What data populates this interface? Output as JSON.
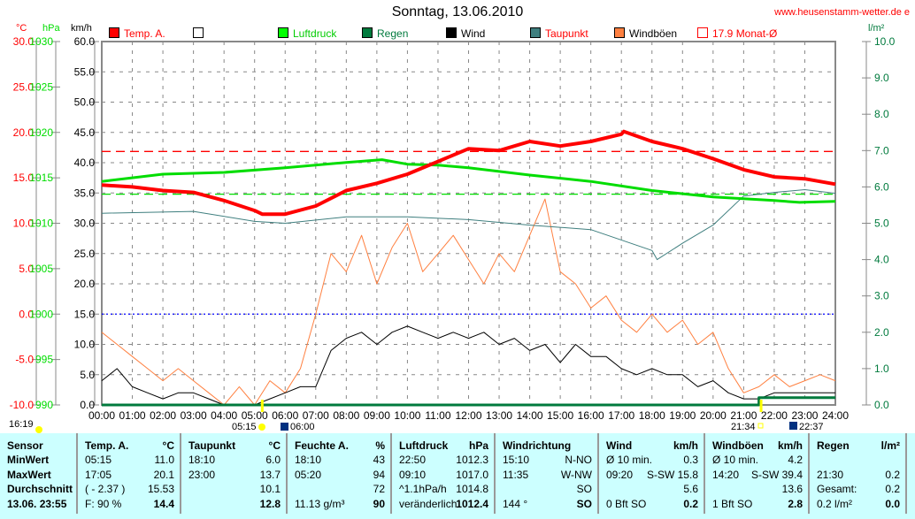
{
  "title": "Sonntag, 13.06.2010",
  "site": "www.heusenstamm-wetter.de e",
  "legend": [
    {
      "label": "Temp. A.",
      "color": "#ff0000",
      "text_color": "#ff0000"
    },
    {
      "label": "",
      "color": "#ffffff",
      "text_color": "#000000"
    },
    {
      "label": "Luftdruck",
      "color": "#00ff00",
      "text_color": "#00cc00"
    },
    {
      "label": "Regen",
      "color": "#007a3d",
      "text_color": "#007a3d"
    },
    {
      "label": "Wind",
      "color": "#000000",
      "text_color": "#000000"
    },
    {
      "label": "Taupunkt",
      "color": "#3f7f7f",
      "text_color": "#ff0000"
    },
    {
      "label": "Windböen",
      "color": "#ff8040",
      "text_color": "#000000"
    },
    {
      "label": "17.9 Monat-Ø",
      "color": "#ff0000",
      "text_color": "#ff0000"
    }
  ],
  "chart_data": {
    "type": "line",
    "title": "Sonntag, 13.06.2010",
    "axes": {
      "temp": {
        "unit": "°C",
        "range": [
          -10,
          30
        ],
        "ticks": [
          "30.0",
          "25.0",
          "20.0",
          "15.0",
          "10.0",
          "5.0",
          "0.0",
          "-5.0",
          "-10.0"
        ]
      },
      "pressure": {
        "unit": "hPa",
        "range": [
          990,
          1030
        ],
        "ticks": [
          "1030",
          "1025",
          "1020",
          "1015",
          "1010",
          "1005",
          "1000",
          "995",
          "990"
        ]
      },
      "wind": {
        "unit": "km/h",
        "range": [
          0,
          60
        ],
        "ticks": [
          "60.0",
          "55.0",
          "50.0",
          "45.0",
          "40.0",
          "35.0",
          "30.0",
          "25.0",
          "20.0",
          "15.0",
          "10.0",
          "5.0",
          "0.0"
        ]
      },
      "rain": {
        "unit": "l/m²",
        "range": [
          0,
          10
        ],
        "ticks": [
          "10.0",
          "9.0",
          "8.0",
          "7.0",
          "6.0",
          "5.0",
          "4.0",
          "3.0",
          "2.0",
          "1.0",
          "0.0"
        ]
      }
    },
    "x_ticks": [
      "00:00",
      "01:00",
      "02:00",
      "03:00",
      "04:00",
      "05:00",
      "06:00",
      "07:00",
      "08:00",
      "09:00",
      "10:00",
      "11:00",
      "12:00",
      "13:00",
      "14:00",
      "15:00",
      "16:00",
      "17:00",
      "18:00",
      "19:00",
      "20:00",
      "21:00",
      "22:00",
      "23:00",
      "24:00"
    ],
    "grid": true,
    "series": [
      {
        "name": "Temp. A.",
        "axis": "temp",
        "color": "#ff0000",
        "hours": [
          0,
          1,
          2,
          3,
          4,
          5,
          5.25,
          6,
          7,
          8,
          9,
          10,
          11,
          12,
          13,
          14,
          15,
          16,
          17,
          17.08,
          18,
          19,
          20,
          21,
          22,
          23,
          24
        ],
        "values": [
          14.2,
          14.0,
          13.6,
          13.4,
          12.5,
          11.4,
          11.0,
          11.0,
          11.9,
          13.6,
          14.4,
          15.4,
          16.8,
          18.2,
          18.0,
          19.0,
          18.5,
          19.0,
          19.8,
          20.1,
          19.0,
          18.2,
          17.1,
          15.9,
          15.1,
          14.9,
          14.3
        ]
      },
      {
        "name": "Luftdruck",
        "axis": "pressure",
        "color": "#00dd00",
        "hours": [
          0,
          2,
          4,
          6,
          8,
          9.17,
          10,
          11,
          12,
          14,
          16,
          18,
          20,
          22,
          22.83,
          24
        ],
        "values": [
          1014.6,
          1015.4,
          1015.6,
          1016.1,
          1016.7,
          1017.0,
          1016.5,
          1016.4,
          1016.1,
          1015.3,
          1014.6,
          1013.6,
          1012.9,
          1012.5,
          1012.3,
          1012.4
        ]
      },
      {
        "name": "Taupunkt",
        "axis": "temp",
        "color": "#3f7f7f",
        "hours": [
          0,
          3,
          5,
          6,
          8,
          10,
          12,
          14,
          16,
          18,
          18.17,
          19,
          20,
          21,
          22,
          23,
          24
        ],
        "values": [
          11.1,
          11.3,
          10.2,
          10.0,
          10.7,
          10.7,
          10.4,
          9.8,
          9.3,
          7.0,
          6.0,
          7.8,
          9.8,
          13.0,
          13.4,
          13.7,
          13.3
        ]
      },
      {
        "name": "Windböen",
        "axis": "wind",
        "color": "#ff8040",
        "step": 0.5,
        "values": [
          12,
          10,
          8,
          6,
          4,
          6,
          4,
          2,
          0,
          3,
          0,
          4,
          2,
          6,
          15,
          25,
          22,
          28,
          20,
          26,
          30,
          22,
          25,
          28,
          24,
          20,
          25,
          22,
          28,
          34,
          22,
          20,
          16,
          18,
          14,
          12,
          15,
          12,
          14,
          10,
          12,
          6,
          2,
          3,
          5,
          3,
          4,
          5,
          4
        ]
      },
      {
        "name": "Wind",
        "axis": "wind",
        "color": "#000000",
        "step": 0.5,
        "values": [
          4,
          6,
          3,
          2,
          1,
          2,
          2,
          1,
          0,
          0,
          0,
          1,
          2,
          3,
          3,
          9,
          11,
          12,
          10,
          12,
          13,
          12,
          11,
          12,
          11,
          12,
          10,
          11,
          9,
          10,
          7,
          10,
          8,
          8,
          6,
          5,
          6,
          5,
          5,
          3,
          4,
          2,
          1,
          1,
          2,
          2,
          2,
          2,
          2
        ]
      },
      {
        "name": "Regen",
        "axis": "rain",
        "color": "#007a3d",
        "hours": [
          0,
          21.5,
          21.5,
          24
        ],
        "values": [
          0,
          0,
          0.2,
          0.2
        ]
      }
    ],
    "reference_lines": [
      {
        "name": "Monat-Ø temp",
        "axis": "temp",
        "value": 17.9,
        "color": "#ff0000",
        "style": "dashed"
      },
      {
        "name": "pressure mean",
        "axis": "pressure",
        "value": 1013.2,
        "color": "#00dd00",
        "style": "dashed"
      },
      {
        "name": "zero line",
        "axis": "temp",
        "value": 0,
        "color": "#0000ff",
        "style": "dotted"
      }
    ],
    "markers": {
      "moonset": "16:19",
      "sunrise": "05:15",
      "sunrise_civil": "06:00",
      "sunset": "21:34",
      "sunset_civil": "22:37"
    }
  },
  "table": {
    "columns": [
      {
        "h": [
          "Sensor",
          ""
        ],
        "rows": [
          [
            "MinWert",
            ""
          ],
          [
            "MaxWert",
            ""
          ],
          [
            "Durchschnitt",
            ""
          ],
          [
            "13.06. 23:55",
            ""
          ]
        ]
      },
      {
        "h": [
          "Temp. A.",
          "°C"
        ],
        "rows": [
          [
            "05:15",
            "11.0"
          ],
          [
            "17:05",
            "20.1"
          ],
          [
            "( - 2.37 )",
            "15.53"
          ],
          [
            "F: 90 %",
            "14.4"
          ]
        ]
      },
      {
        "h": [
          "Taupunkt",
          "°C"
        ],
        "rows": [
          [
            "18:10",
            "6.0"
          ],
          [
            "23:00",
            "13.7"
          ],
          [
            "",
            "10.1"
          ],
          [
            "",
            "12.8"
          ]
        ]
      },
      {
        "h": [
          "Feuchte A.",
          "%"
        ],
        "rows": [
          [
            "18:10",
            "43"
          ],
          [
            "05:20",
            "94"
          ],
          [
            "",
            "72"
          ],
          [
            "11.13 g/m³",
            "90"
          ]
        ]
      },
      {
        "h": [
          "Luftdruck",
          "hPa"
        ],
        "rows": [
          [
            "22:50",
            "1012.3"
          ],
          [
            "09:10",
            "1017.0"
          ],
          [
            "^1.1hPa/h",
            "1014.8"
          ],
          [
            "veränderlich",
            "1012.4"
          ]
        ]
      },
      {
        "h": [
          "Windrichtung",
          ""
        ],
        "rows": [
          [
            "15:10",
            "N-NO"
          ],
          [
            "11:35",
            "W-NW"
          ],
          [
            "",
            "SO"
          ],
          [
            "144 °",
            "SO"
          ]
        ]
      },
      {
        "h": [
          "Wind",
          "km/h"
        ],
        "rows": [
          [
            "Ø 10 min.",
            "0.3"
          ],
          [
            "09:20",
            "S-SW 15.8"
          ],
          [
            "",
            "5.6"
          ],
          [
            "0 Bft SO",
            "0.2"
          ]
        ]
      },
      {
        "h": [
          "Windböen",
          "km/h"
        ],
        "rows": [
          [
            "Ø 10 min.",
            "4.2"
          ],
          [
            "14:20",
            "S-SW 39.4"
          ],
          [
            "",
            "13.6"
          ],
          [
            "1 Bft SO",
            "2.8"
          ]
        ]
      },
      {
        "h": [
          "Regen",
          "l/m²"
        ],
        "rows": [
          [
            "",
            ""
          ],
          [
            "21:30",
            "0.2"
          ],
          [
            "Gesamt:",
            "0.2"
          ],
          [
            "0.2 l/m²",
            "0.0"
          ]
        ]
      }
    ]
  }
}
